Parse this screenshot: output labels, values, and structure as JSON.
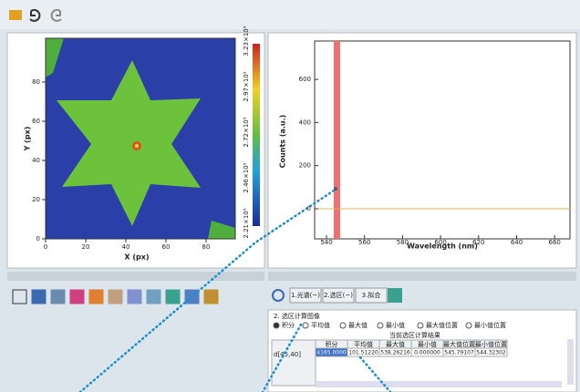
{
  "image_plot": {
    "x_label": "X (px)",
    "y_label": "Y (px)",
    "xticks": [
      0,
      20,
      40,
      60,
      80
    ],
    "yticks": [
      0,
      20,
      40,
      60,
      80
    ],
    "colorbar_ticks": [
      "2.21×10⁵",
      "2.46×10⁵",
      "2.72×10⁵",
      "2.97×10⁵",
      "3.23×10⁵"
    ]
  },
  "spectrum_plot": {
    "x_label": "Wavelength (nm)",
    "y_label": "Counts (a.u.)",
    "xticks": [
      540,
      560,
      580,
      600,
      620,
      640,
      660
    ],
    "yticks": [
      0,
      200,
      400,
      600
    ]
  },
  "tabs": [
    "1.光谱(~)",
    "2.选区(~)",
    "3.拟合"
  ],
  "panel": {
    "title": "2. 选区计算图像",
    "options": [
      "积分",
      "平均值",
      "最大值",
      "最小值",
      "最大值位置",
      "最小值位置"
    ],
    "table": {
      "title": "当前选区计算结果",
      "columns": [
        "积分",
        "平均值",
        "最大值",
        "最小值",
        "最大值位置",
        "最小值位置"
      ],
      "row_label": "d[45,40]",
      "values": [
        "4165.0000",
        "101.51220",
        "538.26216",
        "0.000000",
        "545.79107",
        "544.32302"
      ]
    }
  }
}
